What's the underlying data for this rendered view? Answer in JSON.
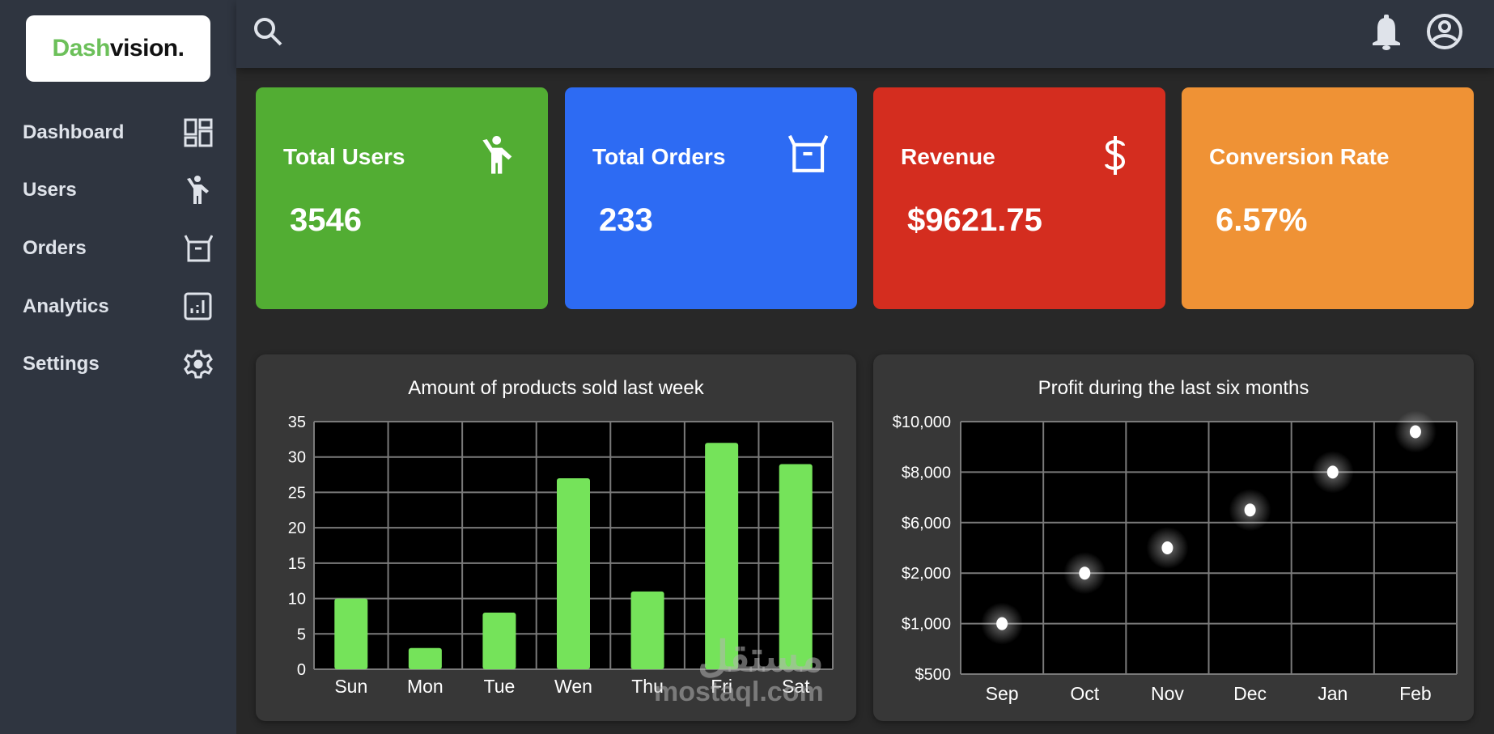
{
  "app": {
    "logo": {
      "part1": "Dash",
      "part2": "vision."
    },
    "colors": {
      "sidebar": "#2f3540",
      "background": "#282828",
      "accent_green": "#6cc05a",
      "bar_color": "#75e35a"
    }
  },
  "sidebar": {
    "items": [
      {
        "label": "Dashboard",
        "icon": "dashboard-grid-icon"
      },
      {
        "label": "Users",
        "icon": "person-waving-icon"
      },
      {
        "label": "Orders",
        "icon": "package-box-icon"
      },
      {
        "label": "Analytics",
        "icon": "analytics-chart-icon"
      },
      {
        "label": "Settings",
        "icon": "gear-icon"
      }
    ]
  },
  "topbar": {
    "search_icon": "search-icon",
    "notification_icon": "bell-icon",
    "account_icon": "account-circle-icon"
  },
  "stats": [
    {
      "title": "Total Users",
      "value": "3546",
      "color": "#52ad33",
      "icon": "person-waving-icon"
    },
    {
      "title": "Total Orders",
      "value": "233",
      "color": "#2d6bf3",
      "icon": "package-box-icon"
    },
    {
      "title": "Revenue",
      "value": "$9621.75",
      "color": "#d42d1f",
      "icon": "dollar-icon"
    },
    {
      "title": "Conversion Rate",
      "value": "6.57%",
      "color": "#ef9235",
      "icon": ""
    }
  ],
  "watermark": {
    "line1": "مستقل",
    "line2": "mostaql.com"
  },
  "chart_data": [
    {
      "type": "bar",
      "title": "Amount of products sold last week",
      "categories": [
        "Sun",
        "Mon",
        "Tue",
        "Wen",
        "Thu",
        "Fri",
        "Sat"
      ],
      "values": [
        10,
        3,
        8,
        27,
        11,
        32,
        29
      ],
      "xlabel": "",
      "ylabel": "",
      "ylim": [
        0,
        35
      ],
      "yticks": [
        "0",
        "5",
        "10",
        "15",
        "20",
        "25",
        "30",
        "35"
      ],
      "grid": true,
      "legend": "none"
    },
    {
      "type": "scatter",
      "title": "Profit during the last six months",
      "categories": [
        "Sep",
        "Oct",
        "Nov",
        "Dec",
        "Jan",
        "Feb"
      ],
      "y_tick_labels": [
        "$500",
        "$1,000",
        "$2,000",
        "$6,000",
        "$8,000",
        "$10,000"
      ],
      "values": [
        1000,
        2000,
        4000,
        6500,
        8000,
        9600
      ],
      "xlabel": "",
      "ylabel": "",
      "ylim": [
        500,
        10000
      ],
      "grid": true,
      "legend": "none"
    }
  ]
}
